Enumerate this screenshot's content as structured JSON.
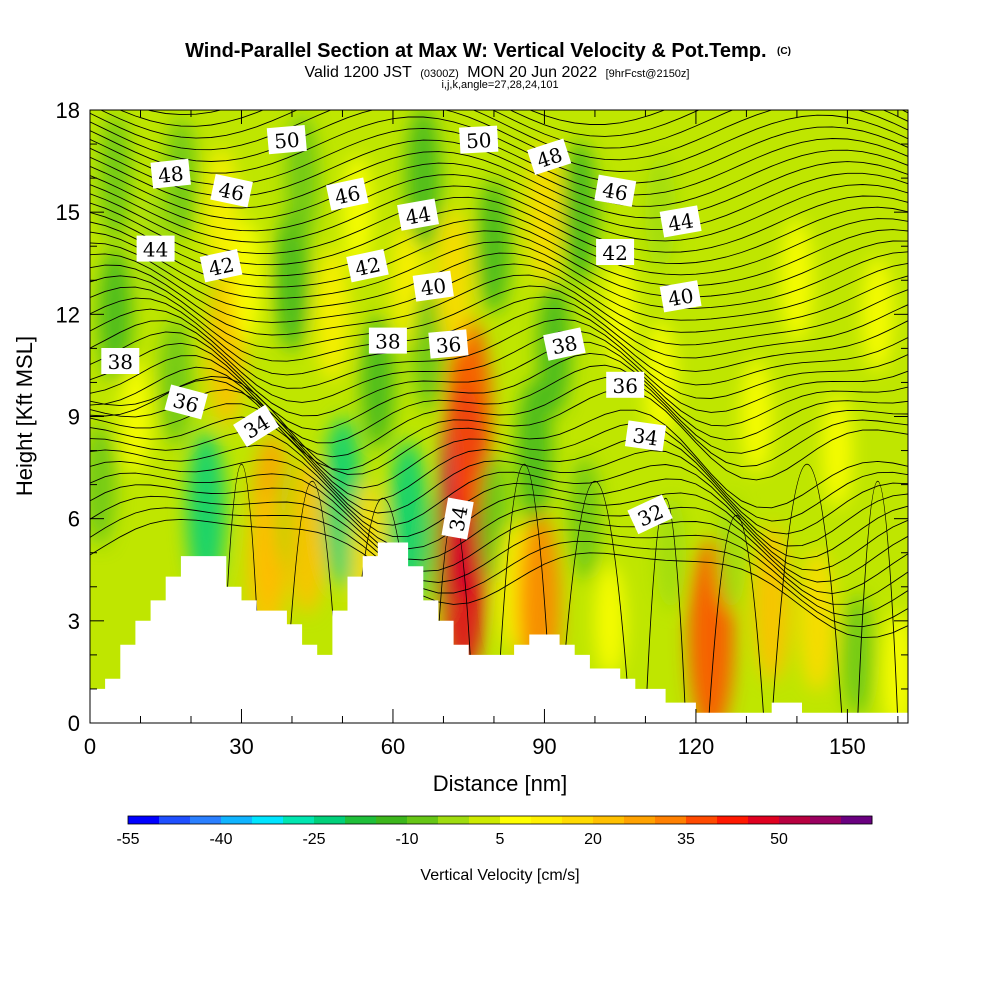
{
  "header": {
    "title": "Wind-Parallel Section at Max W: Vertical Velocity & Pot.Temp.",
    "title_tag": "(C)",
    "subtitle_a": "Valid 1200 JST",
    "subtitle_b": "(0300Z)",
    "subtitle_c": "MON 20 Jun 2022",
    "subtitle_d": "[9hrFcst@2150z]",
    "params": "i,j,k,angle=27,28,24,101"
  },
  "chart_data": {
    "type": "heatmap",
    "title": "Wind-Parallel Section at Max W: Vertical Velocity & Pot.Temp.",
    "xlabel": "Distance [nm]",
    "ylabel": "Height [Kft MSL]",
    "xlim": [
      0,
      162
    ],
    "ylim": [
      0,
      18
    ],
    "xticks": [
      0,
      30,
      60,
      90,
      120,
      150
    ],
    "yticks": [
      0,
      3,
      6,
      9,
      12,
      15,
      18
    ],
    "grid": false,
    "colorbar": {
      "label": "Vertical Velocity [cm/s]",
      "position": "bottom",
      "levels": [
        -55,
        -50,
        -45,
        -40,
        -35,
        -30,
        -25,
        -20,
        -15,
        -10,
        -5,
        0,
        5,
        10,
        15,
        20,
        25,
        30,
        35,
        40,
        45,
        50,
        55,
        60
      ],
      "tick_labels": [
        "-55",
        "-40",
        "-25",
        "-10",
        "5",
        "20",
        "35",
        "50"
      ],
      "tick_values": [
        -55,
        -40,
        -25,
        -10,
        5,
        20,
        35,
        50
      ],
      "colors": [
        "#0000ff",
        "#1f4fff",
        "#2a7fff",
        "#10b4ff",
        "#00e5ff",
        "#00e6b0",
        "#00d07a",
        "#1fbf3a",
        "#3cb61c",
        "#66c616",
        "#9fdc0f",
        "#cdea00",
        "#ffff00",
        "#fff000",
        "#ffda00",
        "#ffc000",
        "#ffa200",
        "#ff8000",
        "#ff4a00",
        "#ff1800",
        "#e00020",
        "#b80040",
        "#9a0060",
        "#6a0080"
      ]
    },
    "background_color": "#bfe600",
    "velocity_cells": [
      {
        "x": 2,
        "y": 7,
        "w": -8
      },
      {
        "x": 5,
        "y": 12,
        "w": -12
      },
      {
        "x": 5,
        "y": 16,
        "w": -10
      },
      {
        "x": 9,
        "y": 9,
        "w": 5
      },
      {
        "x": 13,
        "y": 14,
        "w": -5
      },
      {
        "x": 17,
        "y": 10,
        "w": -10
      },
      {
        "x": 18,
        "y": 16,
        "w": -8
      },
      {
        "x": 23,
        "y": 6.2,
        "w": -22
      },
      {
        "x": 27,
        "y": 11,
        "w": 20
      },
      {
        "x": 26,
        "y": 15,
        "w": 10
      },
      {
        "x": 31,
        "y": 13,
        "w": 8
      },
      {
        "x": 36,
        "y": 6,
        "w": 25
      },
      {
        "x": 35,
        "y": 4.5,
        "w": 20
      },
      {
        "x": 40,
        "y": 13,
        "w": -15
      },
      {
        "x": 40,
        "y": 6,
        "w": -5
      },
      {
        "x": 43,
        "y": 5.5,
        "w": 20
      },
      {
        "x": 42,
        "y": 16,
        "w": -10
      },
      {
        "x": 48,
        "y": 12,
        "w": 12
      },
      {
        "x": 50,
        "y": 6.5,
        "w": -25
      },
      {
        "x": 53,
        "y": 15,
        "w": 5
      },
      {
        "x": 57,
        "y": 10,
        "w": -12
      },
      {
        "x": 55,
        "y": 5,
        "w": 15
      },
      {
        "x": 63,
        "y": 5.8,
        "w": -25
      },
      {
        "x": 63,
        "y": 13,
        "w": 10
      },
      {
        "x": 67,
        "y": 11,
        "w": -10
      },
      {
        "x": 66,
        "y": 16,
        "w": -15
      },
      {
        "x": 70,
        "y": 5,
        "w": -8
      },
      {
        "x": 74,
        "y": 6.8,
        "w": 55
      },
      {
        "x": 74,
        "y": 4.5,
        "w": 45
      },
      {
        "x": 75,
        "y": 9,
        "w": 35
      },
      {
        "x": 72,
        "y": 13,
        "w": 15
      },
      {
        "x": 80,
        "y": 14,
        "w": -12
      },
      {
        "x": 80,
        "y": 6,
        "w": -10
      },
      {
        "x": 84,
        "y": 4,
        "w": 10
      },
      {
        "x": 89,
        "y": 3.5,
        "w": 30
      },
      {
        "x": 88,
        "y": 8,
        "w": -15
      },
      {
        "x": 92,
        "y": 11,
        "w": -12
      },
      {
        "x": 90,
        "y": 15,
        "w": 15
      },
      {
        "x": 97,
        "y": 15,
        "w": -15
      },
      {
        "x": 98,
        "y": 6,
        "w": -8
      },
      {
        "x": 103,
        "y": 3,
        "w": 5
      },
      {
        "x": 105,
        "y": 12,
        "w": 5
      },
      {
        "x": 113,
        "y": 10,
        "w": 8
      },
      {
        "x": 113,
        "y": 15,
        "w": -5
      },
      {
        "x": 115,
        "y": 5,
        "w": -5
      },
      {
        "x": 123,
        "y": 2.5,
        "w": 35
      },
      {
        "x": 127,
        "y": 5,
        "w": -5
      },
      {
        "x": 132,
        "y": 9,
        "w": 5
      },
      {
        "x": 135,
        "y": 3.5,
        "w": 20
      },
      {
        "x": 140,
        "y": 13,
        "w": 8
      },
      {
        "x": 144,
        "y": 3,
        "w": 15
      },
      {
        "x": 148,
        "y": 8,
        "w": 5
      },
      {
        "x": 152,
        "y": 2,
        "w": -8
      },
      {
        "x": 156,
        "y": 12,
        "w": 5
      },
      {
        "x": 160,
        "y": 1.5,
        "w": 8
      }
    ],
    "terrain": [
      [
        0,
        1
      ],
      [
        3,
        1
      ],
      [
        3,
        1.3
      ],
      [
        6,
        1.3
      ],
      [
        6,
        2.3
      ],
      [
        9,
        2.3
      ],
      [
        9,
        3
      ],
      [
        12,
        3
      ],
      [
        12,
        3.6
      ],
      [
        15,
        3.6
      ],
      [
        15,
        4.3
      ],
      [
        18,
        4.3
      ],
      [
        18,
        4.9
      ],
      [
        27,
        4.9
      ],
      [
        27,
        4
      ],
      [
        30,
        4
      ],
      [
        30,
        3.6
      ],
      [
        33,
        3.6
      ],
      [
        33,
        3.3
      ],
      [
        39,
        3.3
      ],
      [
        39,
        2.9
      ],
      [
        42,
        2.9
      ],
      [
        42,
        2.3
      ],
      [
        45,
        2.3
      ],
      [
        45,
        2
      ],
      [
        48,
        2
      ],
      [
        48,
        3.3
      ],
      [
        51,
        3.3
      ],
      [
        51,
        4.3
      ],
      [
        54,
        4.3
      ],
      [
        54,
        4.9
      ],
      [
        57,
        4.9
      ],
      [
        57,
        5.3
      ],
      [
        63,
        5.3
      ],
      [
        63,
        4.6
      ],
      [
        66,
        4.6
      ],
      [
        66,
        3.6
      ],
      [
        69,
        3.6
      ],
      [
        69,
        3
      ],
      [
        72,
        3
      ],
      [
        72,
        2.3
      ],
      [
        75,
        2.3
      ],
      [
        75,
        2
      ],
      [
        84,
        2
      ],
      [
        84,
        2.3
      ],
      [
        87,
        2.3
      ],
      [
        87,
        2.6
      ],
      [
        93,
        2.6
      ],
      [
        93,
        2.3
      ],
      [
        96,
        2.3
      ],
      [
        96,
        2
      ],
      [
        99,
        2
      ],
      [
        99,
        1.6
      ],
      [
        105,
        1.6
      ],
      [
        105,
        1.3
      ],
      [
        108,
        1.3
      ],
      [
        108,
        1
      ],
      [
        114,
        1
      ],
      [
        114,
        0.6
      ],
      [
        120,
        0.6
      ],
      [
        120,
        0.3
      ],
      [
        135,
        0.3
      ],
      [
        135,
        0.6
      ],
      [
        141,
        0.6
      ],
      [
        141,
        0.3
      ],
      [
        162,
        0.3
      ]
    ],
    "theta_labels": [
      {
        "value": "50",
        "x": 39,
        "y": 17.1,
        "angle": -5
      },
      {
        "value": "50",
        "x": 77,
        "y": 17.1,
        "angle": -3
      },
      {
        "value": "48",
        "x": 16,
        "y": 16.1,
        "angle": -6
      },
      {
        "value": "48",
        "x": 91,
        "y": 16.6,
        "angle": -18
      },
      {
        "value": "46",
        "x": 28,
        "y": 15.6,
        "angle": 12
      },
      {
        "value": "46",
        "x": 51,
        "y": 15.5,
        "angle": -12
      },
      {
        "value": "46",
        "x": 104,
        "y": 15.6,
        "angle": 10
      },
      {
        "value": "44",
        "x": 13,
        "y": 13.9,
        "angle": 0
      },
      {
        "value": "44",
        "x": 65,
        "y": 14.9,
        "angle": -10
      },
      {
        "value": "44",
        "x": 117,
        "y": 14.7,
        "angle": -10
      },
      {
        "value": "42",
        "x": 26,
        "y": 13.4,
        "angle": -12
      },
      {
        "value": "42",
        "x": 55,
        "y": 13.4,
        "angle": -12
      },
      {
        "value": "42",
        "x": 104,
        "y": 13.8,
        "angle": 0
      },
      {
        "value": "40",
        "x": 68,
        "y": 12.8,
        "angle": -8
      },
      {
        "value": "40",
        "x": 117,
        "y": 12.5,
        "angle": -10
      },
      {
        "value": "38",
        "x": 6,
        "y": 10.6,
        "angle": 0
      },
      {
        "value": "38",
        "x": 59,
        "y": 11.2,
        "angle": 0
      },
      {
        "value": "38",
        "x": 94,
        "y": 11.1,
        "angle": -12
      },
      {
        "value": "36",
        "x": 19,
        "y": 9.4,
        "angle": 15
      },
      {
        "value": "36",
        "x": 71,
        "y": 11.1,
        "angle": -5
      },
      {
        "value": "36",
        "x": 106,
        "y": 9.9,
        "angle": 0
      },
      {
        "value": "34",
        "x": 33,
        "y": 8.7,
        "angle": -32
      },
      {
        "value": "34",
        "x": 73,
        "y": 6,
        "angle": -80
      },
      {
        "value": "34",
        "x": 110,
        "y": 8.4,
        "angle": 8
      },
      {
        "value": "32",
        "x": 111,
        "y": 6.1,
        "angle": -25
      }
    ]
  }
}
